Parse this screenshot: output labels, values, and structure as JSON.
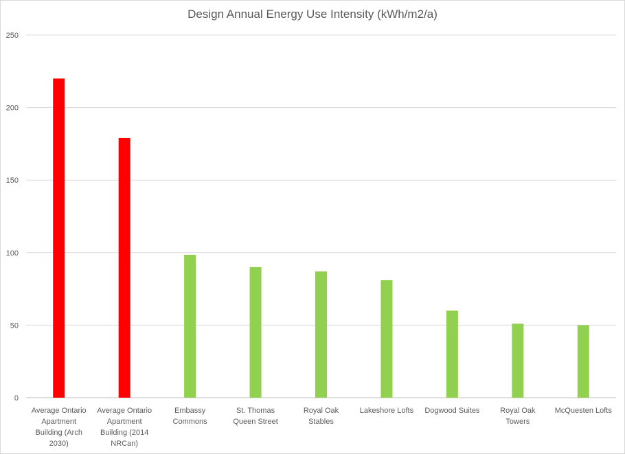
{
  "chart_data": {
    "type": "bar",
    "title": "Design Annual Energy Use Intensity (kWh/m2/a)",
    "xlabel": "",
    "ylabel": "",
    "ylim": [
      0,
      250
    ],
    "yticks": [
      0,
      50,
      100,
      150,
      200,
      250
    ],
    "grid": true,
    "legend": "none",
    "categories": [
      [
        "Average Ontario",
        "Apartment",
        "Building (Arch",
        "2030)"
      ],
      [
        "Average Ontario",
        "Apartment",
        "Building (2014",
        "NRCan)"
      ],
      [
        "Embassy",
        "Commons"
      ],
      [
        "St. Thomas",
        "Queen Street"
      ],
      [
        "Royal Oak",
        "Stables"
      ],
      [
        "Lakeshore Lofts"
      ],
      [
        "Dogwood Suites"
      ],
      [
        "Royal Oak",
        "Towers"
      ],
      [
        "McQuesten Lofts"
      ]
    ],
    "values": [
      220,
      179,
      98.5,
      90,
      87,
      81,
      60,
      51,
      50
    ],
    "bar_colors": [
      "#ff0000",
      "#ff0000",
      "#92d050",
      "#92d050",
      "#92d050",
      "#92d050",
      "#92d050",
      "#92d050",
      "#92d050"
    ]
  }
}
